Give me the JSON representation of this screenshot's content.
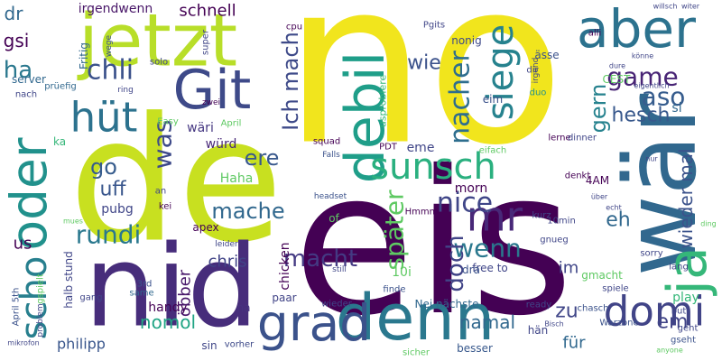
{
  "words": [
    "no",
    "de",
    "eis",
    "nid",
    "wär",
    "jetzt",
    "Git",
    "aber",
    "denn",
    "grad",
    "debil",
    "sunsch",
    "oder",
    "ja",
    "domi",
    "scho",
    "hüt",
    "chli",
    "mr",
    "siege",
    "nacher",
    "Ich mach",
    "später",
    "nice",
    "wenn",
    "doch",
    "macht",
    "mache",
    "ere",
    "was",
    "schnell",
    "game",
    "aso",
    "hesch",
    "gern",
    "wieder mal",
    "em",
    "eh",
    "zu",
    "für",
    "im",
    "rundi",
    "go",
    "uff",
    "pubg",
    "us",
    "dr",
    "gsi",
    "ha",
    "wie",
    "namal",
    "nomol",
    "philipp",
    "handy",
    "öbber",
    "chris",
    "Haha",
    "würd",
    "wäri",
    "irgendwenn",
    "Fritig",
    "chicken",
    "paar",
    "na",
    "sin",
    "vorher",
    "besser",
    "free to",
    "dra",
    "10i",
    "morn",
    "eme",
    "PDT",
    "4AM",
    "Hmmm",
    "of",
    "apex",
    "3rd",
    "squad",
    "nonig",
    "eim",
    "CEST",
    "dir",
    "duo",
    "server",
    "cpu",
    "super",
    "si",
    "April",
    "April 5th",
    "halb stund",
    "kurz",
    "lerne",
    "dinner",
    "denkt",
    "sorry",
    "play",
    "but",
    "gseht",
    "geht",
    "same",
    "gang",
    "ready",
    "hän",
    "sicher",
    "finde",
    "Nei nächste",
    "wieder",
    "still",
    "gmacht",
    "chasch",
    "lang",
    "alli",
    "Pgits",
    "Easy",
    "ka",
    "gspielt",
    "prüefig",
    "nach",
    "wege",
    "solo",
    "ring",
    "zwei",
    "Falls",
    "headset",
    "eifach",
    "10min",
    "gnueg",
    "spiele",
    "echt",
    "über",
    "dure",
    "kei",
    "an",
    "mues",
    "leider",
    "Warzone",
    "anyone",
    "nur",
    "ding",
    "witer",
    "willsch",
    "könne",
    "eigentlich",
    "Bisch",
    "usprobiere",
    "ässe",
    "irgend",
    "problem",
    "mikrofon"
  ]
}
